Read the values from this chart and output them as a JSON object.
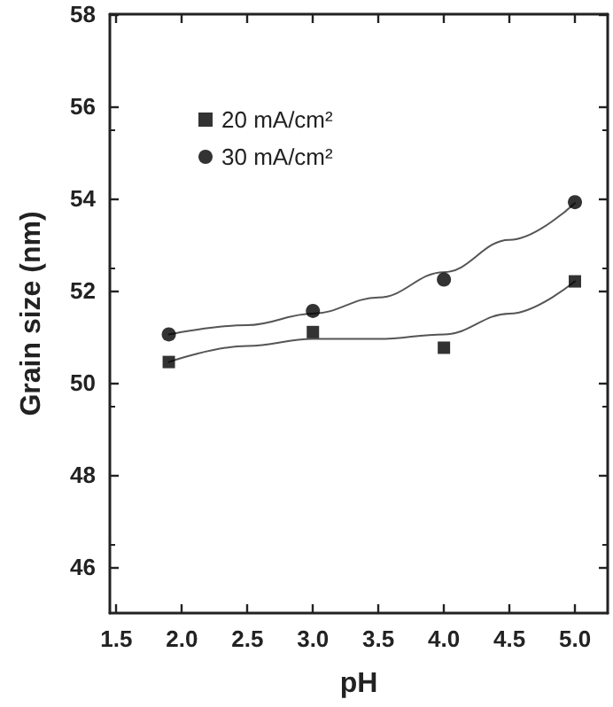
{
  "chart_data": {
    "type": "scatter",
    "xlabel": "pH",
    "ylabel": "Grain size (nm)",
    "xlim": [
      1.45,
      5.25
    ],
    "xticks": [
      1.5,
      {
        "value": 2,
        "label": "2.0"
      },
      2.5,
      {
        "value": 3,
        "label": "3.0"
      },
      3.5,
      {
        "value": 4,
        "label": "4.0"
      },
      4.5,
      {
        "value": 5,
        "label": "5.0"
      }
    ],
    "ylim": [
      45,
      58
    ],
    "yticks": [
      46,
      48,
      50,
      52,
      54,
      56,
      58
    ],
    "x": [
      1.9,
      3.0,
      4.0,
      5.0
    ],
    "series": [
      {
        "name": "20 mA/cm²",
        "color": "#000000",
        "marker": "square",
        "values": [
          50.45,
          51.1,
          50.76,
          52.2
        ]
      },
      {
        "name": "30 mA/cm²",
        "color": "#000000",
        "marker": "circle",
        "values": [
          51.05,
          51.56,
          52.24,
          53.92
        ]
      },
      {
        "type": "line",
        "color": "#555555",
        "marker": "none",
        "x": [
          1.9,
          2.5,
          3.0,
          3.5,
          4.0,
          4.5,
          5.0
        ],
        "values": [
          50.45,
          50.8,
          50.95,
          50.95,
          51.05,
          51.5,
          52.2
        ]
      },
      {
        "type": "line",
        "color": "#555555",
        "marker": "none",
        "x": [
          1.9,
          2.5,
          3.0,
          3.5,
          4.0,
          4.5,
          5.0
        ],
        "values": [
          51.05,
          51.25,
          51.5,
          51.85,
          52.4,
          53.1,
          53.9
        ]
      }
    ],
    "legend": "top left",
    "grid": false
  }
}
